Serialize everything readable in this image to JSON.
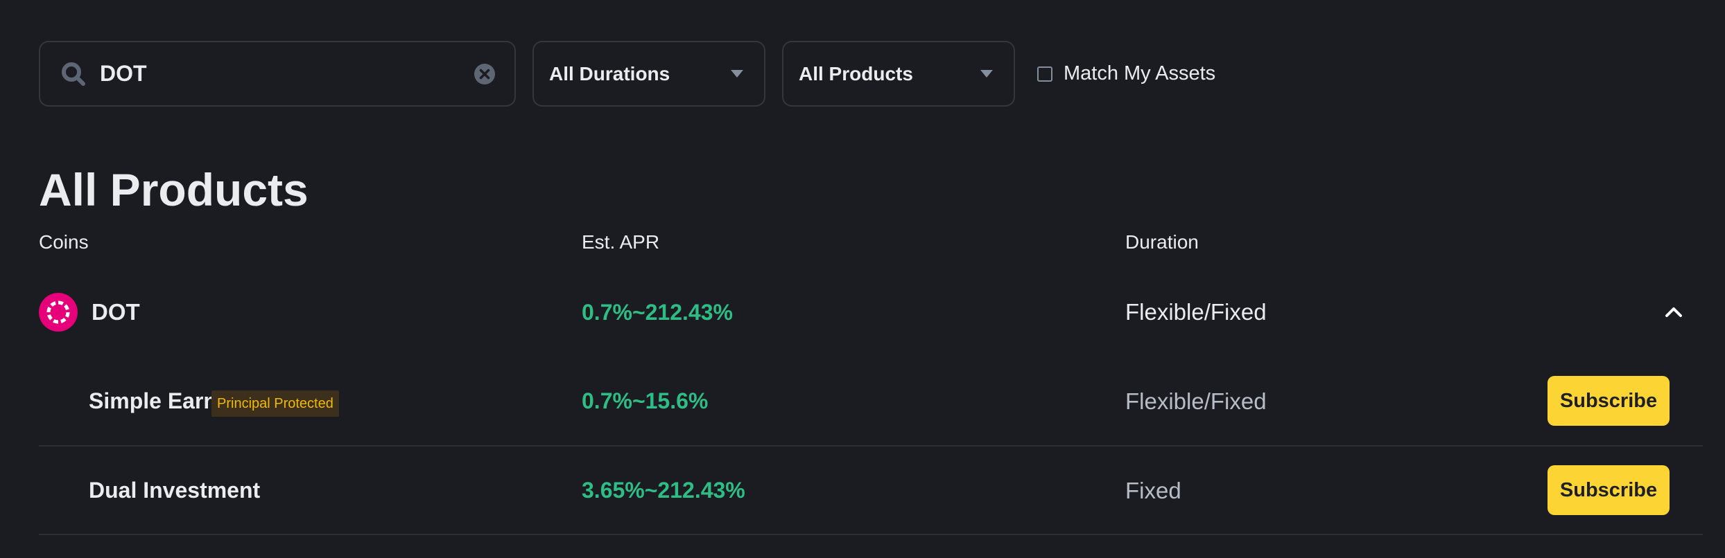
{
  "search": {
    "value": "DOT",
    "icon": "search-icon",
    "clear_icon": "clear-icon"
  },
  "filters": {
    "durations_label": "All Durations",
    "products_label": "All Products",
    "match_assets_label": "Match My Assets",
    "match_assets_checked": false
  },
  "title": "All Products",
  "table": {
    "headers": {
      "coins": "Coins",
      "apr": "Est. APR",
      "duration": "Duration"
    },
    "coin": {
      "name": "DOT",
      "icon": "polkadot-icon",
      "apr": "0.7%~212.43%",
      "duration": "Flexible/Fixed",
      "expanded": true
    },
    "products": [
      {
        "name": "Simple Earn",
        "badge": "Principal Protected",
        "apr": "0.7%~15.6%",
        "duration": "Flexible/Fixed",
        "action": "Subscribe"
      },
      {
        "name": "Dual Investment",
        "apr": "3.65%~212.43%",
        "duration": "Fixed",
        "action": "Subscribe"
      }
    ]
  },
  "colors": {
    "background": "#1b1c21",
    "accent": "#fcd535",
    "positive": "#2ebd85",
    "brand_dot": "#e6007a"
  }
}
